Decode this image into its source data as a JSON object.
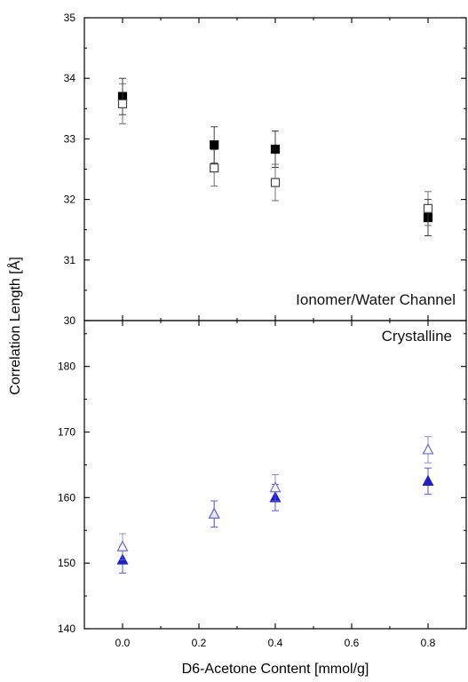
{
  "chart_data": {
    "type": "scatter",
    "xlabel": "D6-Acetone Content [mmol/g]",
    "ylabel": "Correlation Length [Å]",
    "x_ticks": [
      "0.0",
      "0.2",
      "0.4",
      "0.6",
      "0.8"
    ],
    "xlim": [
      -0.1,
      0.9
    ],
    "panels": [
      {
        "label": "Ionomer/Water Channel",
        "ylim": [
          30,
          35
        ],
        "y_ticks": [
          "30",
          "31",
          "32",
          "33",
          "34",
          "35"
        ],
        "series": [
          {
            "marker": "square-filled",
            "color": "#000000",
            "points": [
              {
                "x": 0.0,
                "y": 33.7,
                "err": 0.3
              },
              {
                "x": 0.24,
                "y": 32.9,
                "err": 0.3
              },
              {
                "x": 0.4,
                "y": 32.83,
                "err": 0.3
              },
              {
                "x": 0.8,
                "y": 31.7,
                "err": 0.3
              }
            ]
          },
          {
            "marker": "square-open",
            "color": "#444444",
            "points": [
              {
                "x": 0.0,
                "y": 33.58,
                "err": 0.33
              },
              {
                "x": 0.24,
                "y": 32.52,
                "err": 0.3
              },
              {
                "x": 0.4,
                "y": 32.28,
                "err": 0.3
              },
              {
                "x": 0.8,
                "y": 31.85,
                "err": 0.28
              }
            ]
          }
        ]
      },
      {
        "label": "Crystalline",
        "ylim": [
          140,
          187
        ],
        "y_ticks": [
          "140",
          "150",
          "160",
          "170",
          "180"
        ],
        "series": [
          {
            "marker": "triangle-filled",
            "color": "#1f1fc8",
            "points": [
              {
                "x": 0.0,
                "y": 150.5,
                "err": 2.0
              },
              {
                "x": 0.24,
                "y": 157.5,
                "err": 2.0
              },
              {
                "x": 0.4,
                "y": 160.0,
                "err": 2.0
              },
              {
                "x": 0.8,
                "y": 162.5,
                "err": 2.0
              }
            ]
          },
          {
            "marker": "triangle-open",
            "color": "#6a6ad8",
            "points": [
              {
                "x": 0.0,
                "y": 152.5,
                "err": 2.0
              },
              {
                "x": 0.24,
                "y": 157.5,
                "err": 2.0
              },
              {
                "x": 0.4,
                "y": 161.5,
                "err": 2.0
              },
              {
                "x": 0.8,
                "y": 167.3,
                "err": 2.0
              }
            ]
          }
        ]
      }
    ]
  }
}
